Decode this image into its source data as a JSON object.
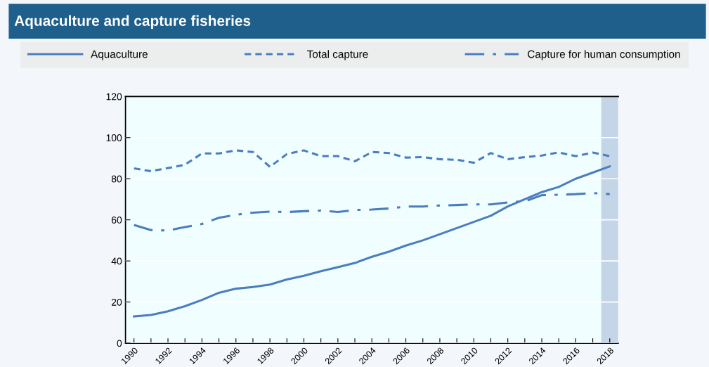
{
  "chart_data": {
    "type": "line",
    "title": "Aquaculture and capture fisheries",
    "x": [
      1990,
      1991,
      1992,
      1993,
      1994,
      1995,
      1996,
      1997,
      1998,
      1999,
      2000,
      2001,
      2002,
      2003,
      2004,
      2005,
      2006,
      2007,
      2008,
      2009,
      2010,
      2011,
      2012,
      2013,
      2014,
      2015,
      2016,
      2017,
      2018
    ],
    "series": [
      {
        "name": "Aquaculture",
        "color": "#4a7ebf",
        "line_style": "solid",
        "values": [
          13,
          13.7,
          15.5,
          18,
          21,
          24.5,
          26.5,
          27.3,
          28.5,
          31,
          32.8,
          35,
          37,
          39,
          42,
          44.5,
          47.5,
          50,
          53,
          56,
          59,
          62,
          66.5,
          70,
          73.5,
          76,
          80,
          83,
          86
        ]
      },
      {
        "name": "Total capture",
        "color": "#4a7ebf",
        "line_style": "dashed",
        "values": [
          85,
          83.7,
          85.2,
          86.8,
          92.3,
          92.3,
          93.8,
          93,
          85.8,
          92,
          93.8,
          91,
          91,
          88.5,
          93,
          92.5,
          90.3,
          90.5,
          89.5,
          89.2,
          87.8,
          92.5,
          89.5,
          90.5,
          91.3,
          92.8,
          91,
          92.7,
          91
        ]
      },
      {
        "name": "Capture for human consumption",
        "color": "#4a7ebf",
        "line_style": "dashdot",
        "values": [
          57.5,
          55,
          54.8,
          56.5,
          58,
          61,
          62.5,
          63.5,
          64,
          63.8,
          64.2,
          64.5,
          63.8,
          64.8,
          65,
          65.5,
          66.5,
          66.5,
          67,
          67.2,
          67.5,
          67.5,
          68.5,
          69,
          72,
          72.2,
          72.5,
          73,
          72.5
        ]
      }
    ],
    "xlim": [
      1989.5,
      2018.5
    ],
    "xticks": [
      1990,
      {
        "value": 1991,
        "label": null
      },
      1992,
      {
        "value": 1993,
        "label": null
      },
      1994,
      {
        "value": 1995,
        "label": null
      },
      1996,
      {
        "value": 1997,
        "label": null
      },
      1998,
      {
        "value": 1999,
        "label": null
      },
      2000,
      {
        "value": 2001,
        "label": null
      },
      2002,
      {
        "value": 2003,
        "label": null
      },
      2004,
      {
        "value": 2005,
        "label": null
      },
      2006,
      {
        "value": 2007,
        "label": null
      },
      2008,
      {
        "value": 2009,
        "label": null
      },
      2010,
      {
        "value": 2011,
        "label": null
      },
      2012,
      {
        "value": 2013,
        "label": null
      },
      2014,
      {
        "value": 2015,
        "label": null
      },
      2016,
      {
        "value": 2017,
        "label": null
      },
      2018
    ],
    "ylim": [
      0,
      120
    ],
    "yticks": [
      0,
      20,
      40,
      60,
      80,
      100,
      120
    ],
    "bands": [
      {
        "axis": "x",
        "from": 2017.5,
        "to": 2018.5,
        "color": "#c5d5e8"
      }
    ],
    "grid": "y",
    "legend": "top",
    "marker": "none"
  }
}
